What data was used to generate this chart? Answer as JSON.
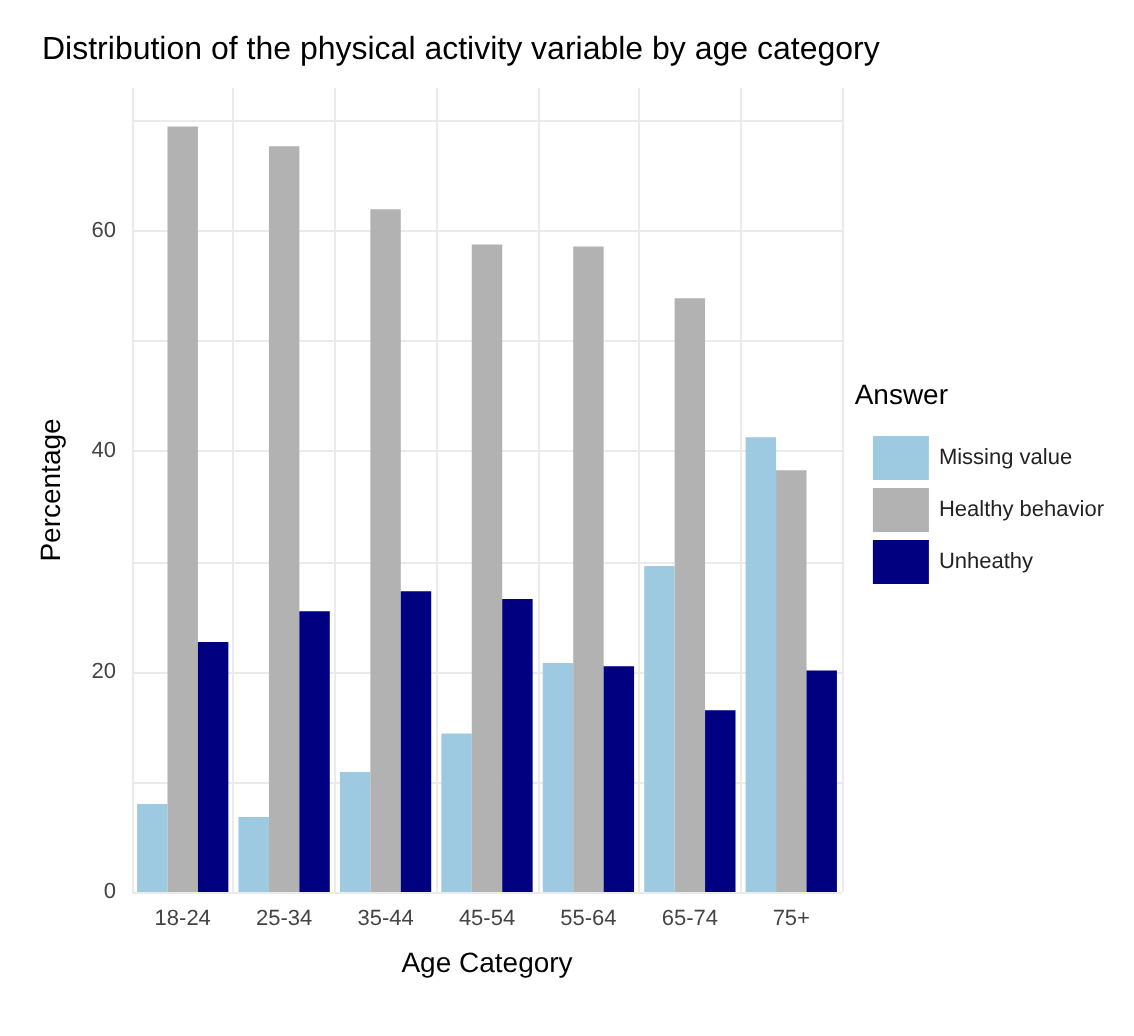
{
  "chart_data": {
    "type": "bar",
    "title": "Distribution of the physical activity variable by age category",
    "xlabel": "Age Category",
    "ylabel": "Percentage",
    "legend_title": "Answer",
    "categories": [
      "18-24",
      "25-34",
      "35-44",
      "45-54",
      "55-64",
      "65-74",
      "75+"
    ],
    "series": [
      {
        "name": "Missing value",
        "color": "#9ecae1",
        "values": [
          8.0,
          6.8,
          10.9,
          14.4,
          20.8,
          29.6,
          41.3
        ]
      },
      {
        "name": "Healthy behavior",
        "color": "#b2b2b2",
        "values": [
          69.5,
          67.7,
          62.0,
          58.8,
          58.6,
          53.9,
          38.3
        ]
      },
      {
        "name": "Unheathy",
        "color": "#000080",
        "values": [
          22.7,
          25.5,
          27.3,
          26.6,
          20.5,
          16.5,
          20.1
        ]
      }
    ],
    "ylim": [
      0,
      73
    ],
    "yticks": [
      0,
      {
        "value": 10,
        "label": null
      },
      20,
      {
        "value": 30,
        "label": null
      },
      40,
      {
        "value": 50,
        "label": null
      },
      60,
      {
        "value": 70,
        "label": null
      }
    ],
    "grid": true,
    "legend": "right"
  }
}
